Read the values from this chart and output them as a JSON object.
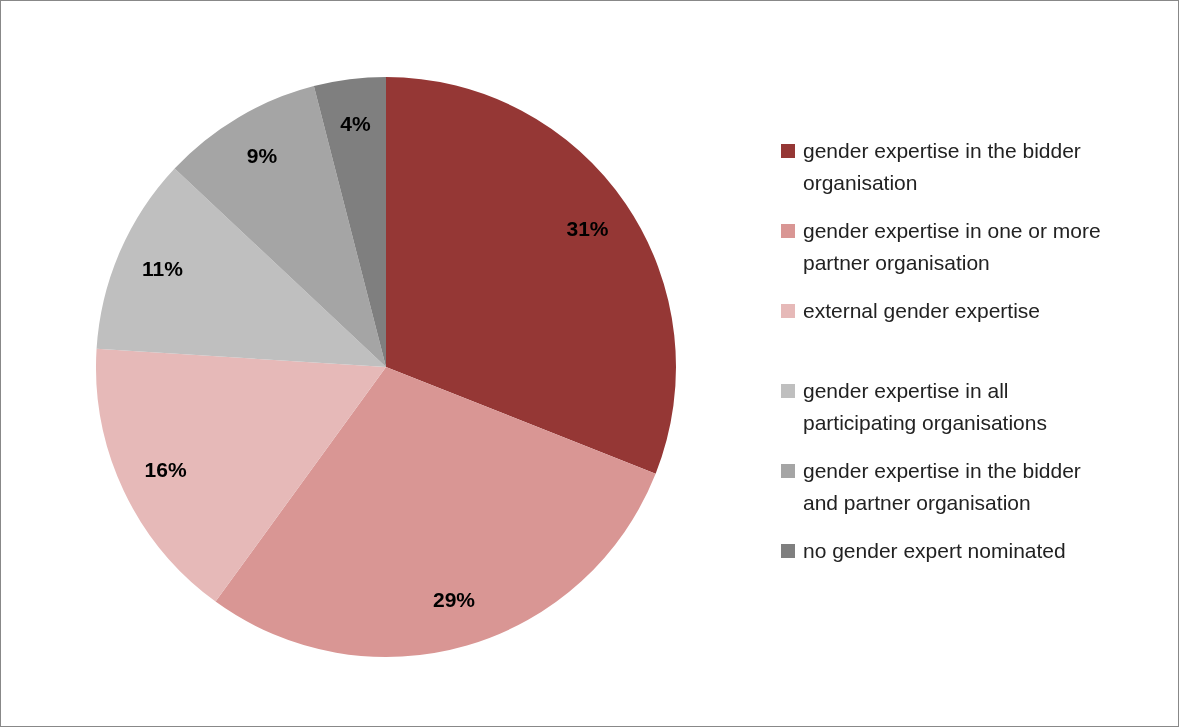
{
  "chart_data": {
    "type": "pie",
    "categories": [
      "gender expertise in the bidder organisation",
      "gender expertise in one or more partner organisation",
      "external gender expertise",
      "gender expertise in all participating organisations",
      "gender expertise in the bidder and partner organisation",
      "no gender expert nominated"
    ],
    "values": [
      31,
      29,
      16,
      11,
      9,
      4
    ],
    "colors": [
      "#953735",
      "#d99694",
      "#e6b9b8",
      "#bfbfbf",
      "#a5a5a5",
      "#7f7f7f"
    ],
    "value_labels": [
      "31%",
      "29%",
      "16%",
      "11%",
      "9%",
      "4%"
    ],
    "legend": "right"
  }
}
